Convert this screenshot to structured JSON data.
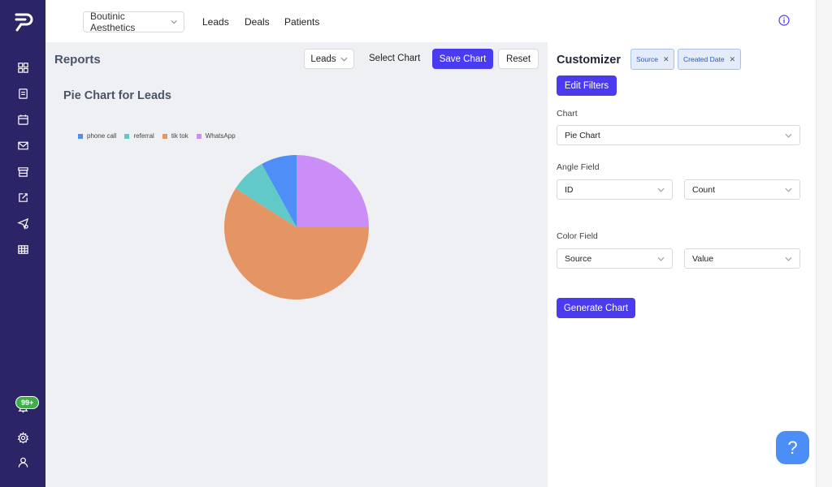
{
  "topbar": {
    "clinic": "Boutinic Aesthetics",
    "nav": [
      "Leads",
      "Deals",
      "Patients"
    ]
  },
  "sidebar": {
    "icons": [
      "dashboard-icon",
      "clipboard-icon",
      "calendar-icon",
      "mail-icon",
      "store-icon",
      "edit-icon",
      "send-icon",
      "table-icon",
      "bell-icon",
      "settings-icon",
      "user-icon"
    ],
    "badge": "99+"
  },
  "reports": {
    "title": "Reports",
    "dataset": "Leads",
    "select_chart": "Select Chart",
    "save": "Save Chart",
    "reset": "Reset"
  },
  "chart_data": {
    "type": "pie",
    "title": "Pie Chart for Leads",
    "legend_position": "top-left",
    "categories": [
      "phone call",
      "referral",
      "tik tok",
      "WhatsApp"
    ],
    "values": [
      8,
      8,
      59,
      25
    ],
    "colors": [
      "#4f8ef7",
      "#62c9c9",
      "#e59463",
      "#cb8ef7"
    ]
  },
  "customizer": {
    "title": "Customizer",
    "chips": [
      "Source",
      "Created Date"
    ],
    "edit_filters": "Edit Filters",
    "chart_label": "Chart",
    "chart_value": "Pie Chart",
    "angle_label": "Angle Field",
    "angle_field": "ID",
    "angle_agg": "Count",
    "color_label": "Color Field",
    "color_field": "Source",
    "color_agg": "Value",
    "generate": "Generate Chart"
  },
  "help": "?",
  "colors": {
    "accent": "#4b3bf0",
    "sidebar": "#2b2467",
    "help": "#4c8ef7"
  }
}
